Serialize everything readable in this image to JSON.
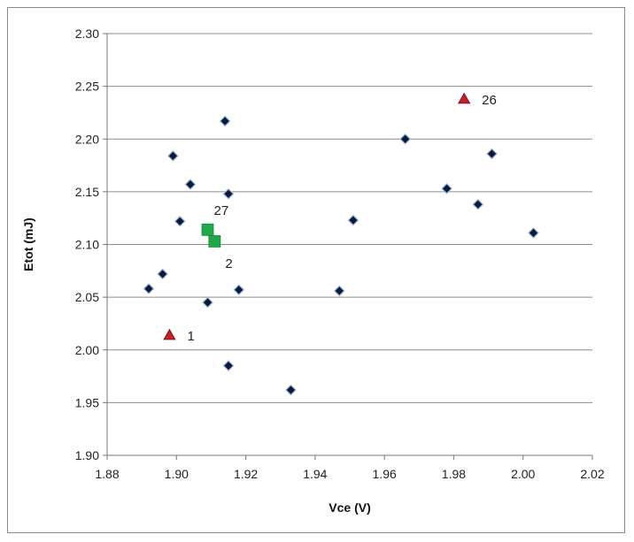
{
  "chart_data": {
    "type": "scatter",
    "xlabel": "Vce (V)",
    "ylabel": "Etot (mJ)",
    "xlim": [
      1.88,
      2.02
    ],
    "ylim": [
      1.9,
      2.3
    ],
    "x_ticks": [
      "1.88",
      "1.90",
      "1.92",
      "1.94",
      "1.96",
      "1.98",
      "2.00",
      "2.02"
    ],
    "y_ticks": [
      "1.90",
      "1.95",
      "2.00",
      "2.05",
      "2.10",
      "2.15",
      "2.20",
      "2.25",
      "2.30"
    ],
    "grid": "horizontal",
    "series": [
      {
        "marker": "diamond",
        "color": "#0a1a3a",
        "points": [
          {
            "x": 1.892,
            "y": 2.058
          },
          {
            "x": 1.896,
            "y": 2.072
          },
          {
            "x": 1.899,
            "y": 2.184
          },
          {
            "x": 1.901,
            "y": 2.122
          },
          {
            "x": 1.904,
            "y": 2.157
          },
          {
            "x": 1.909,
            "y": 2.045
          },
          {
            "x": 1.914,
            "y": 2.217
          },
          {
            "x": 1.915,
            "y": 2.148
          },
          {
            "x": 1.915,
            "y": 1.985
          },
          {
            "x": 1.918,
            "y": 2.057
          },
          {
            "x": 1.933,
            "y": 1.962
          },
          {
            "x": 1.947,
            "y": 2.056
          },
          {
            "x": 1.951,
            "y": 2.123
          },
          {
            "x": 1.966,
            "y": 2.2
          },
          {
            "x": 1.978,
            "y": 2.153
          },
          {
            "x": 1.987,
            "y": 2.138
          },
          {
            "x": 1.991,
            "y": 2.186
          },
          {
            "x": 2.003,
            "y": 2.111
          }
        ]
      },
      {
        "marker": "triangle",
        "color": "#c0202a",
        "points": [
          {
            "x": 1.898,
            "y": 2.014,
            "label": "1"
          },
          {
            "x": 1.983,
            "y": 2.238,
            "label": "26"
          }
        ]
      },
      {
        "marker": "square",
        "color": "#22a84a",
        "points": [
          {
            "x": 1.909,
            "y": 2.114,
            "label": "27"
          },
          {
            "x": 1.911,
            "y": 2.103,
            "label": "2"
          }
        ]
      }
    ]
  }
}
